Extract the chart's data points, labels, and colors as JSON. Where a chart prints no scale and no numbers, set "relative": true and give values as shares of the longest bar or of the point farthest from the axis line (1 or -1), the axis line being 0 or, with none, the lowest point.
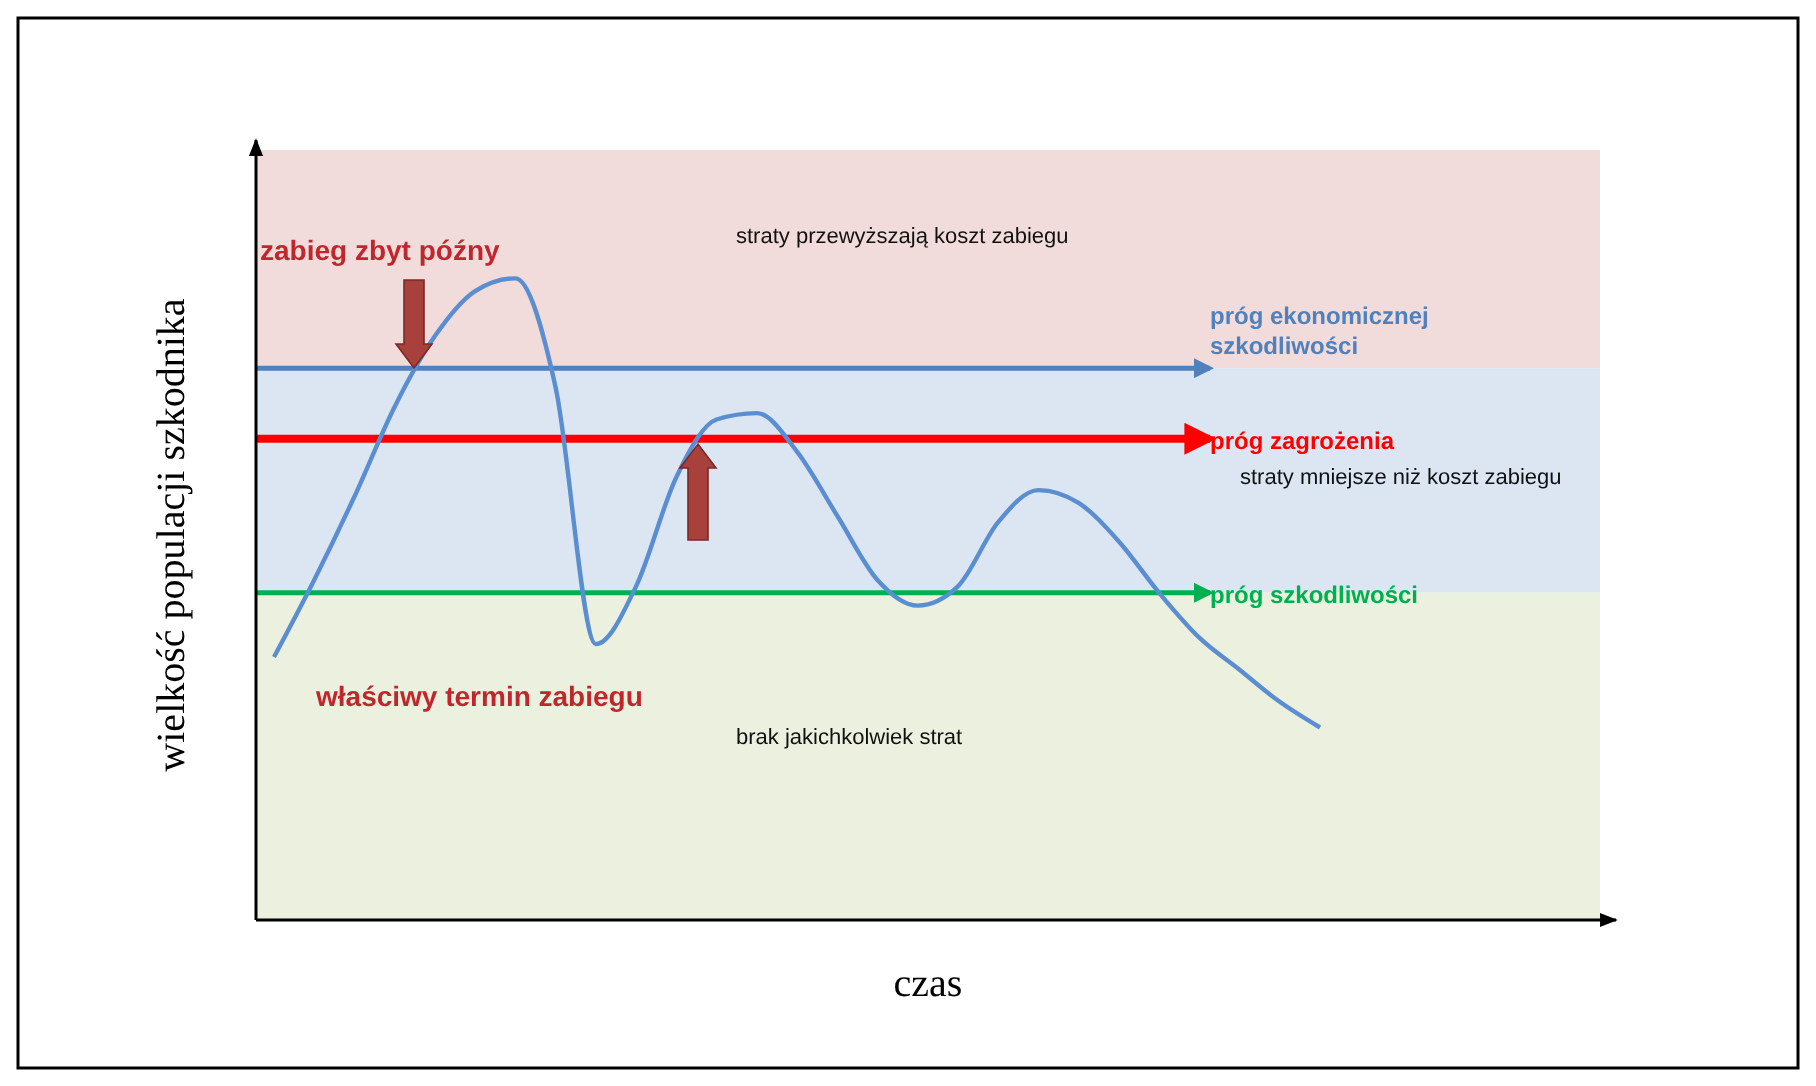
{
  "chart_data": {
    "type": "line",
    "relative": true,
    "xlabel": "czas",
    "ylabel": "wielkość populacji szkodnika",
    "categories": [
      null,
      null,
      null,
      null,
      null,
      null,
      null,
      null,
      null,
      null,
      null,
      null,
      null,
      null,
      null,
      null,
      null,
      null,
      null,
      null,
      null,
      null,
      null,
      null,
      null,
      null,
      null
    ],
    "series": [
      {
        "color": "#5b8ed0",
        "values": [
          0.41,
          0.53,
          0.66,
          0.8,
          0.91,
          0.98,
          1,
          0.83,
          0.43,
          0.52,
          0.69,
          0.78,
          0.79,
          0.73,
          0.63,
          0.53,
          0.49,
          0.52,
          0.62,
          0.67,
          0.65,
          0.59,
          0.51,
          0.44,
          0.39,
          0.34,
          0.3
        ]
      }
    ],
    "bands": [
      {
        "axis": "y",
        "from": 0.86,
        "to": 1.2,
        "label": "straty przewyższają koszt zabiegu",
        "color": "#f2dcdb"
      },
      {
        "axis": "y",
        "from": 0.51,
        "to": 0.86,
        "label": "straty mniejsze niż koszt zabiegu",
        "color": "#dce6f2"
      },
      {
        "axis": "y",
        "from": 0,
        "to": 0.51,
        "label": "brak jakichkolwiek strat",
        "color": "#ebf1de"
      }
    ],
    "ref_lines": [
      {
        "axis": "y",
        "value": 0.86,
        "label": "próg ekonomicznej szkodliwości",
        "color": "#4f81bd"
      },
      {
        "axis": "y",
        "value": 0.75,
        "label": "próg zagrożenia",
        "color": "#ff0000"
      },
      {
        "axis": "y",
        "value": 0.51,
        "label": "próg szkodliwości",
        "color": "#00b050"
      }
    ],
    "annotations": [
      "zabieg zbyt późny",
      "właściwy termin zabiegu"
    ],
    "line_style": "solid",
    "marker": "none"
  }
}
